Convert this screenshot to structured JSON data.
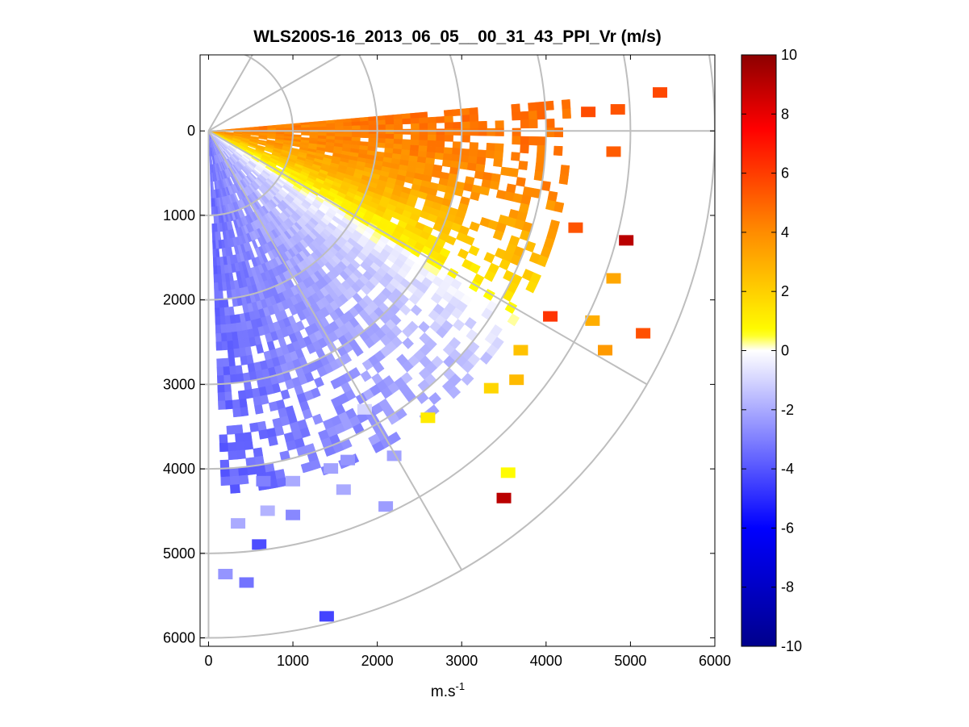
{
  "chart_data": {
    "type": "heatmap",
    "subtype": "ppi-polar-sector",
    "title": "WLS200S-16_2013_06_05__00_31_43_PPI_Vr (m/s)",
    "xlabel": {
      "base": "m.s",
      "sup": "-1"
    },
    "ylabel": "",
    "xlim": [
      -100,
      6000
    ],
    "ylim": [
      6100,
      -900
    ],
    "y_axis_direction": "down",
    "x_ticks": [
      "0",
      "1000",
      "2000",
      "3000",
      "4000",
      "5000",
      "6000"
    ],
    "y_ticks": [
      "0",
      "1000",
      "2000",
      "3000",
      "4000",
      "5000",
      "6000"
    ],
    "grid": true,
    "grid_color": "#bebebe",
    "range_rings": [
      1000,
      2000,
      3000,
      4000,
      5000,
      6000
    ],
    "radial_lines_deg": [
      -60,
      -30,
      0,
      30,
      60,
      90
    ],
    "radial_line_length": 6000,
    "sector_azimuth_deg": [
      -5,
      88
    ],
    "max_range": 4300,
    "colorbar": {
      "range": [
        -10,
        10
      ],
      "ticks": [
        "10",
        "8",
        "6",
        "4",
        "2",
        "0",
        "-2",
        "-4",
        "-6",
        "-8",
        "-10"
      ],
      "colors": [
        "#00008c",
        "#0000ff",
        "#ffffff",
        "#ffff00",
        "#ff8c00",
        "#ff0000",
        "#8c0000"
      ],
      "color_stops": [
        -10,
        -6,
        0,
        0.6,
        4,
        7.5,
        10
      ]
    },
    "velocity_profile": [
      {
        "az": -5,
        "vr": 4.3
      },
      {
        "az": 5,
        "vr": 3.9
      },
      {
        "az": 12,
        "vr": 3.4
      },
      {
        "az": 20,
        "vr": 2.3
      },
      {
        "az": 27,
        "vr": 1.0
      },
      {
        "az": 32,
        "vr": 0.2
      },
      {
        "az": 36,
        "vr": -0.5
      },
      {
        "az": 45,
        "vr": -1.3
      },
      {
        "az": 60,
        "vr": -2.1
      },
      {
        "az": 75,
        "vr": -2.8
      },
      {
        "az": 88,
        "vr": -3.3
      }
    ],
    "outlier_cells": [
      {
        "x": 5350,
        "y": -450,
        "vr": 5.7
      },
      {
        "x": 4500,
        "y": -220,
        "vr": 5.6
      },
      {
        "x": 4850,
        "y": -250,
        "vr": 5.4
      },
      {
        "x": 4800,
        "y": 250,
        "vr": 5.2
      },
      {
        "x": 4950,
        "y": 1300,
        "vr": 9.0
      },
      {
        "x": 5150,
        "y": 2400,
        "vr": 5.5
      },
      {
        "x": 4700,
        "y": 2600,
        "vr": 3.6
      },
      {
        "x": 4550,
        "y": 2250,
        "vr": 3.0
      },
      {
        "x": 4800,
        "y": 1750,
        "vr": 3.2
      },
      {
        "x": 4350,
        "y": 1150,
        "vr": 5.4
      },
      {
        "x": 4050,
        "y": 2200,
        "vr": 6.2
      },
      {
        "x": 3700,
        "y": 2600,
        "vr": 2.4
      },
      {
        "x": 3650,
        "y": 2950,
        "vr": 2.6
      },
      {
        "x": 3350,
        "y": 3050,
        "vr": 1.8
      },
      {
        "x": 3550,
        "y": 4050,
        "vr": 0.7
      },
      {
        "x": 3500,
        "y": 4350,
        "vr": 9.0
      },
      {
        "x": 2600,
        "y": 3400,
        "vr": 1.2
      },
      {
        "x": 2200,
        "y": 3850,
        "vr": -2.2
      },
      {
        "x": 2100,
        "y": 4450,
        "vr": -2.3
      },
      {
        "x": 1400,
        "y": 5750,
        "vr": -4.4
      },
      {
        "x": 600,
        "y": 4900,
        "vr": -4.2
      },
      {
        "x": 1000,
        "y": 4550,
        "vr": -2.8
      },
      {
        "x": 700,
        "y": 4500,
        "vr": -1.8
      },
      {
        "x": 350,
        "y": 4650,
        "vr": -2.0
      },
      {
        "x": 200,
        "y": 5250,
        "vr": -2.5
      },
      {
        "x": 450,
        "y": 5350,
        "vr": -3.3
      },
      {
        "x": 1450,
        "y": 4000,
        "vr": -2.2
      },
      {
        "x": 1600,
        "y": 4250,
        "vr": -2.0
      },
      {
        "x": 1000,
        "y": 4150,
        "vr": -2.0
      },
      {
        "x": 650,
        "y": 4150,
        "vr": -3.0
      },
      {
        "x": 1850,
        "y": 3300,
        "vr": -1.0
      },
      {
        "x": 1650,
        "y": 3900,
        "vr": -2.5
      }
    ]
  }
}
